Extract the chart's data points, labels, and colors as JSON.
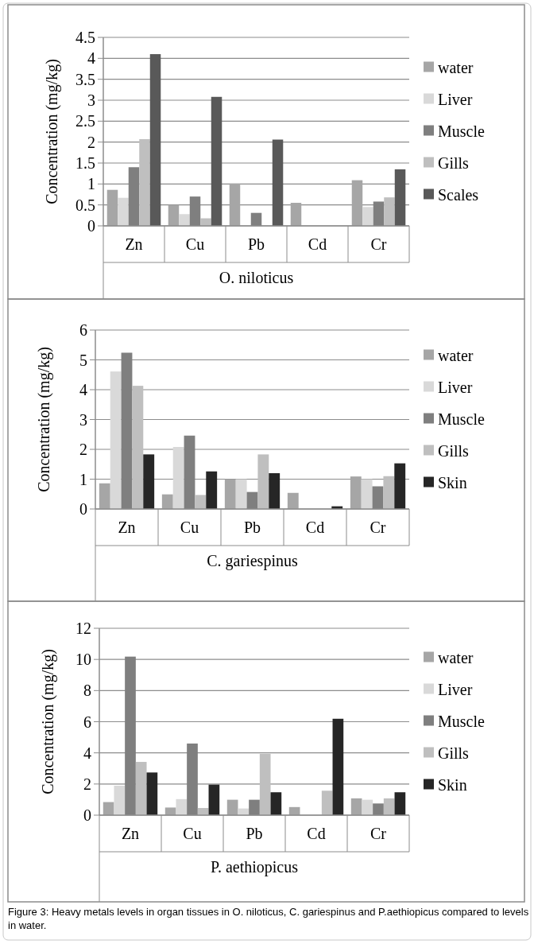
{
  "chart_data": [
    {
      "type": "bar",
      "ylabel": "Concentration (mg/kg)",
      "xlabel": "O. niloticus",
      "categories": [
        "Zn",
        "Cu",
        "Pb",
        "Cd",
        "Cr"
      ],
      "ylim": [
        0,
        4.5
      ],
      "yticks": [
        0,
        {
          "value": 0.5,
          "label": "0.5"
        },
        1,
        {
          "value": 1.5,
          "label": "1.5"
        },
        2,
        {
          "value": 2.5,
          "label": "2.5"
        },
        3,
        {
          "value": 3.5,
          "label": "3.5"
        },
        4,
        {
          "value": 4.5,
          "label": "4.5"
        }
      ],
      "grid": "y",
      "legend": "right",
      "series": [
        {
          "name": "water",
          "color": "#a6a6a6",
          "values": [
            0.86,
            0.5,
            1.01,
            0.55,
            1.09
          ]
        },
        {
          "name": "Liver",
          "color": "#d9d9d9",
          "values": [
            0.67,
            0.28,
            0,
            0,
            0.45
          ]
        },
        {
          "name": "Muscle",
          "color": "#7f7f7f",
          "values": [
            1.4,
            0.7,
            0.31,
            0,
            0.58
          ]
        },
        {
          "name": "Gills",
          "color": "#bfbfbf",
          "values": [
            2.07,
            0.18,
            0,
            0,
            0.68
          ]
        },
        {
          "name": "Scales",
          "color": "#595959",
          "values": [
            4.1,
            3.08,
            2.06,
            0,
            1.35
          ]
        }
      ]
    },
    {
      "type": "bar",
      "ylabel": "Concentration (mg/kg)",
      "xlabel": "C. gariespinus",
      "categories": [
        "Zn",
        "Cu",
        "Pb",
        "Cd",
        "Cr"
      ],
      "ylim": [
        0,
        6
      ],
      "yticks": [
        0,
        1,
        2,
        3,
        4,
        5,
        6
      ],
      "grid": "y",
      "legend": "right",
      "series": [
        {
          "name": "water",
          "color": "#a6a6a6",
          "values": [
            0.86,
            0.49,
            1.0,
            0.54,
            1.09
          ]
        },
        {
          "name": "Liver",
          "color": "#d9d9d9",
          "values": [
            4.61,
            2.08,
            1.0,
            0,
            1.0
          ]
        },
        {
          "name": "Muscle",
          "color": "#7f7f7f",
          "values": [
            5.24,
            2.46,
            0.57,
            0,
            0.76
          ]
        },
        {
          "name": "Gills",
          "color": "#bfbfbf",
          "values": [
            4.13,
            0.47,
            1.83,
            0,
            1.1
          ]
        },
        {
          "name": "Skin",
          "color": "#262626",
          "values": [
            1.83,
            1.26,
            1.2,
            0.09,
            1.53
          ]
        }
      ]
    },
    {
      "type": "bar",
      "ylabel": "Concentration (mg/kg)",
      "xlabel": "P. aethiopicus",
      "categories": [
        "Zn",
        "Cu",
        "Pb",
        "Cd",
        "Cr"
      ],
      "ylim": [
        0,
        12
      ],
      "yticks": [
        0,
        2,
        4,
        6,
        8,
        10,
        12
      ],
      "grid": "y",
      "legend": "right",
      "annotations": [
        "Figure 3: Heavy metals levels in organ tissues in O. niloticus, C. gariespinus and P.aethiopicus compared to levels in water."
      ],
      "series": [
        {
          "name": "water",
          "color": "#a6a6a6",
          "values": [
            0.84,
            0.49,
            0.99,
            0.52,
            1.08
          ]
        },
        {
          "name": "Liver",
          "color": "#d9d9d9",
          "values": [
            1.89,
            1.03,
            0.43,
            0,
            0.99
          ]
        },
        {
          "name": "Muscle",
          "color": "#7f7f7f",
          "values": [
            10.18,
            4.6,
            0.99,
            0,
            0.75
          ]
        },
        {
          "name": "Gills",
          "color": "#bfbfbf",
          "values": [
            3.42,
            0.46,
            3.94,
            1.57,
            1.08
          ]
        },
        {
          "name": "Skin",
          "color": "#262626",
          "values": [
            2.74,
            1.96,
            1.47,
            6.19,
            1.47
          ]
        }
      ]
    }
  ]
}
